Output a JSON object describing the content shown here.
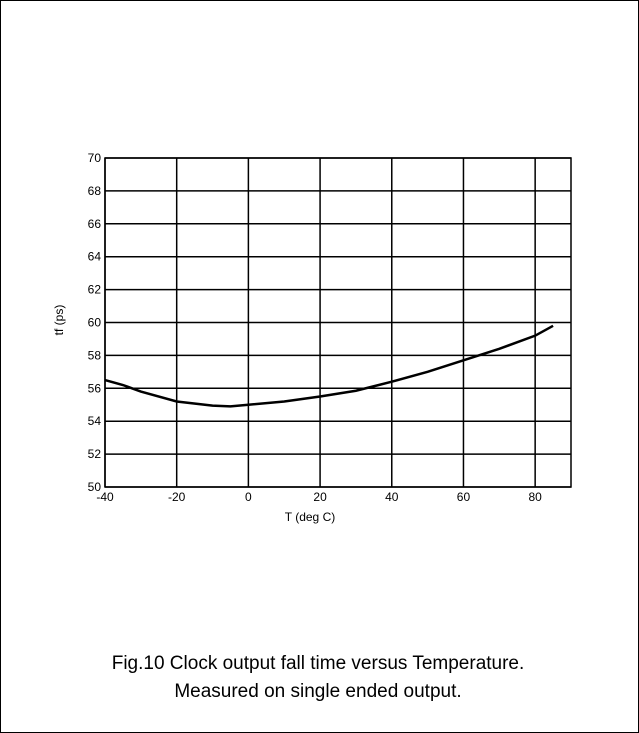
{
  "chart_data": {
    "type": "line",
    "x": [
      -40,
      -35,
      -30,
      -20,
      -10,
      -5,
      0,
      10,
      20,
      30,
      40,
      50,
      60,
      70,
      80,
      85
    ],
    "series": [
      {
        "name": "tf",
        "color": "#000000",
        "values": [
          56.5,
          56.2,
          55.8,
          55.2,
          54.95,
          54.9,
          55.0,
          55.2,
          55.5,
          55.85,
          56.4,
          57.0,
          57.7,
          58.4,
          59.2,
          59.8
        ]
      }
    ],
    "xlim": [
      -40,
      90
    ],
    "xticks": [
      -40,
      -20,
      0,
      20,
      40,
      60,
      80
    ],
    "ylim": [
      50,
      70
    ],
    "yticks": [
      50,
      52,
      54,
      56,
      58,
      60,
      62,
      64,
      66,
      68,
      70
    ],
    "xlabel": "T (deg C)",
    "ylabel": "tf (ps)",
    "grid": true,
    "caption": [
      "Fig.10  Clock output fall time versus Temperature.",
      "Measured on single ended output."
    ]
  }
}
